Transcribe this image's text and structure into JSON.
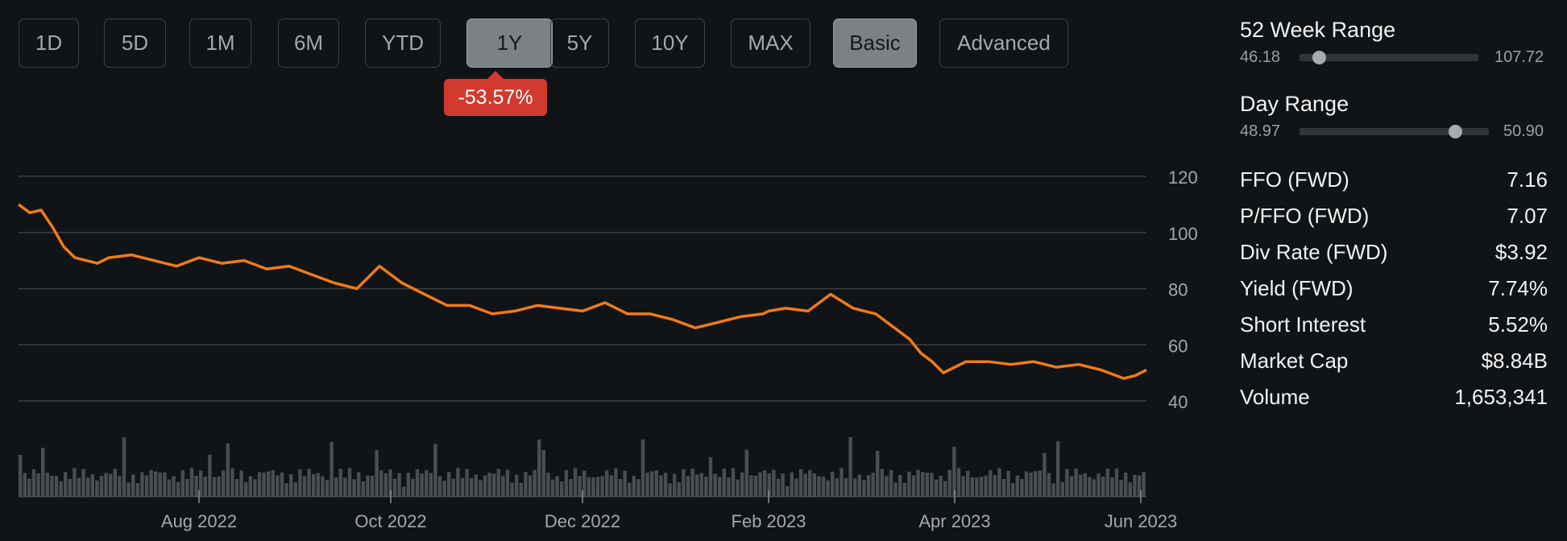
{
  "toolbar": {
    "ranges": [
      "1D",
      "5D",
      "1M",
      "6M",
      "YTD",
      "1Y",
      "5Y",
      "10Y",
      "MAX"
    ],
    "active_range": "1Y",
    "modes": [
      "Basic",
      "Advanced"
    ],
    "active_mode": "Basic"
  },
  "change_badge": "-53.57%",
  "colors": {
    "background": "#111417",
    "price_line": "#f07a18",
    "volume_bar": "#4a4d51",
    "badge": "#d23a2f",
    "grid": "#3a3e43"
  },
  "ranges": {
    "week52": {
      "title": "52 Week Range",
      "low": "46.18",
      "high": "107.72",
      "position": 0.11
    },
    "day": {
      "title": "Day Range",
      "low": "48.97",
      "high": "50.90",
      "position": 0.82
    }
  },
  "stats": [
    {
      "label": "FFO (FWD)",
      "value": "7.16"
    },
    {
      "label": "P/FFO (FWD)",
      "value": "7.07"
    },
    {
      "label": "Div Rate (FWD)",
      "value": "$3.92"
    },
    {
      "label": "Yield (FWD)",
      "value": "7.74%"
    },
    {
      "label": "Short Interest",
      "value": "5.52%"
    },
    {
      "label": "Market Cap",
      "value": "$8.84B"
    },
    {
      "label": "Volume",
      "value": "1,653,341"
    }
  ],
  "chart_data": {
    "type": "line",
    "title": "",
    "xlabel": "",
    "ylabel": "",
    "ylim": [
      40,
      120
    ],
    "y_ticks": [
      120,
      100,
      80,
      60,
      40
    ],
    "x_ticks": [
      "Aug 2022",
      "Oct 2022",
      "Dec 2022",
      "Feb 2023",
      "Apr 2023",
      "Jun 2023"
    ],
    "x_tick_positions": [
      0.16,
      0.33,
      0.5,
      0.665,
      0.83,
      0.995
    ],
    "grid": true,
    "series": [
      {
        "x": [
          0,
          0.01,
          0.02,
          0.03,
          0.04,
          0.05,
          0.06,
          0.07,
          0.08,
          0.1,
          0.12,
          0.14,
          0.16,
          0.18,
          0.2,
          0.22,
          0.24,
          0.26,
          0.28,
          0.3,
          0.32,
          0.34,
          0.36,
          0.38,
          0.4,
          0.42,
          0.44,
          0.46,
          0.48,
          0.5,
          0.52,
          0.54,
          0.56,
          0.58,
          0.6,
          0.62,
          0.64,
          0.66,
          0.665,
          0.68,
          0.7,
          0.72,
          0.74,
          0.76,
          0.77,
          0.78,
          0.79,
          0.8,
          0.81,
          0.82,
          0.84,
          0.86,
          0.88,
          0.9,
          0.92,
          0.94,
          0.96,
          0.98,
          0.99,
          1.0
        ],
        "y": [
          110,
          107,
          108,
          102,
          95,
          91,
          90,
          89,
          91,
          92,
          90,
          88,
          91,
          89,
          90,
          87,
          88,
          85,
          82,
          80,
          88,
          82,
          78,
          74,
          74,
          71,
          72,
          74,
          73,
          72,
          75,
          71,
          71,
          69,
          66,
          68,
          70,
          71,
          72,
          73,
          72,
          78,
          73,
          71,
          68,
          65,
          62,
          57,
          54,
          50,
          54,
          54,
          53,
          54,
          52,
          53,
          51,
          48,
          49,
          51
        ]
      }
    ]
  }
}
